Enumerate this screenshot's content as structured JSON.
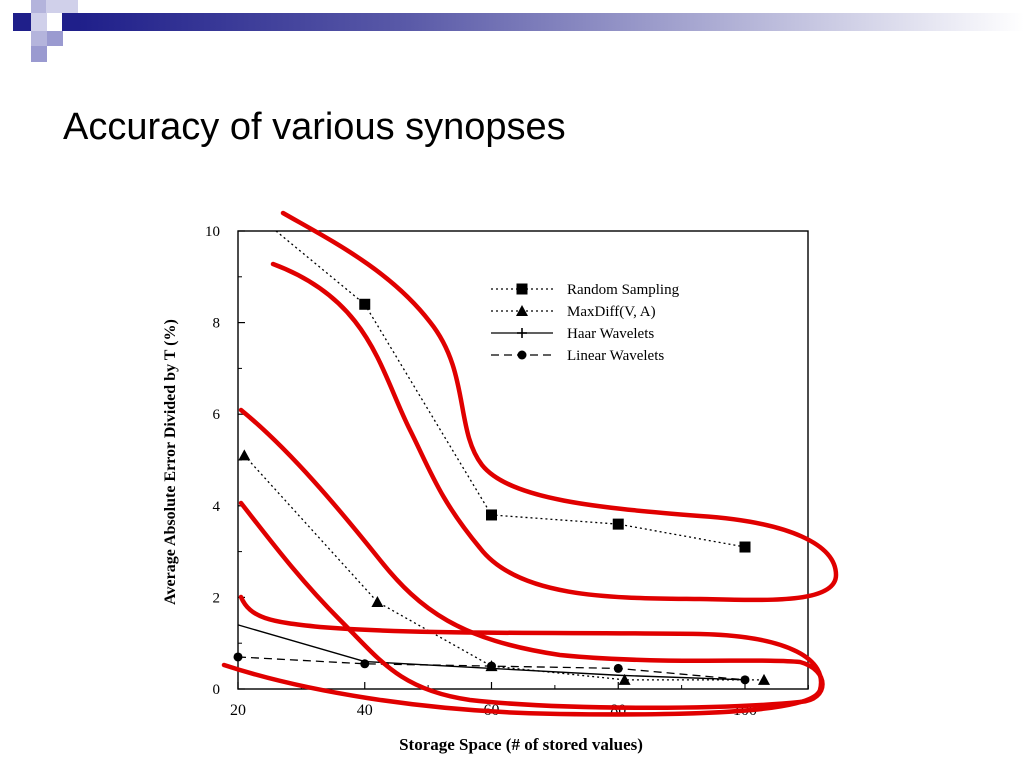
{
  "slide": {
    "title": "Accuracy of various synopses"
  },
  "colors": {
    "accent_navy": "#1f1f8a",
    "accent_lavender": "#9a9ad0",
    "annotation_red": "#e00000",
    "data_ink": "#000000"
  },
  "chart_data": {
    "type": "line",
    "title": "",
    "xlabel": "Storage Space (# of stored values)",
    "ylabel": "Average Absolute Error Divided by T (%)",
    "xlim": [
      20,
      110
    ],
    "ylim": [
      0,
      10
    ],
    "x_ticks": [
      20,
      40,
      60,
      80,
      100
    ],
    "x_tick_labels": [
      "20",
      "40",
      "60",
      "80",
      "100"
    ],
    "y_ticks": [
      0,
      2,
      4,
      6,
      8,
      10
    ],
    "y_tick_labels": [
      "0",
      "2",
      "4",
      "6",
      "8",
      "10"
    ],
    "legend_position": "top-right",
    "grid": false,
    "series": [
      {
        "name": "Random Sampling",
        "line": "dotted",
        "marker": "square",
        "points": [
          [
            26,
            10.0
          ],
          [
            40,
            8.4
          ],
          [
            60,
            3.8
          ],
          [
            80,
            3.6
          ],
          [
            100,
            3.1
          ]
        ]
      },
      {
        "name": "MaxDiff(V, A)",
        "line": "dotted",
        "marker": "triangle",
        "points": [
          [
            21,
            5.1
          ],
          [
            42,
            1.9
          ],
          [
            60,
            0.5
          ],
          [
            81,
            0.2
          ],
          [
            103,
            0.2
          ]
        ]
      },
      {
        "name": "Haar Wavelets",
        "line": "solid",
        "marker": "none",
        "points": [
          [
            20,
            1.4
          ],
          [
            40,
            0.6
          ],
          [
            60,
            0.45
          ],
          [
            80,
            0.3
          ],
          [
            100,
            0.2
          ]
        ]
      },
      {
        "name": "Linear Wavelets",
        "line": "dashed",
        "marker": "circle",
        "points": [
          [
            20,
            0.7
          ],
          [
            40,
            0.55
          ],
          [
            60,
            0.5
          ],
          [
            80,
            0.45
          ],
          [
            100,
            0.2
          ]
        ]
      }
    ]
  }
}
